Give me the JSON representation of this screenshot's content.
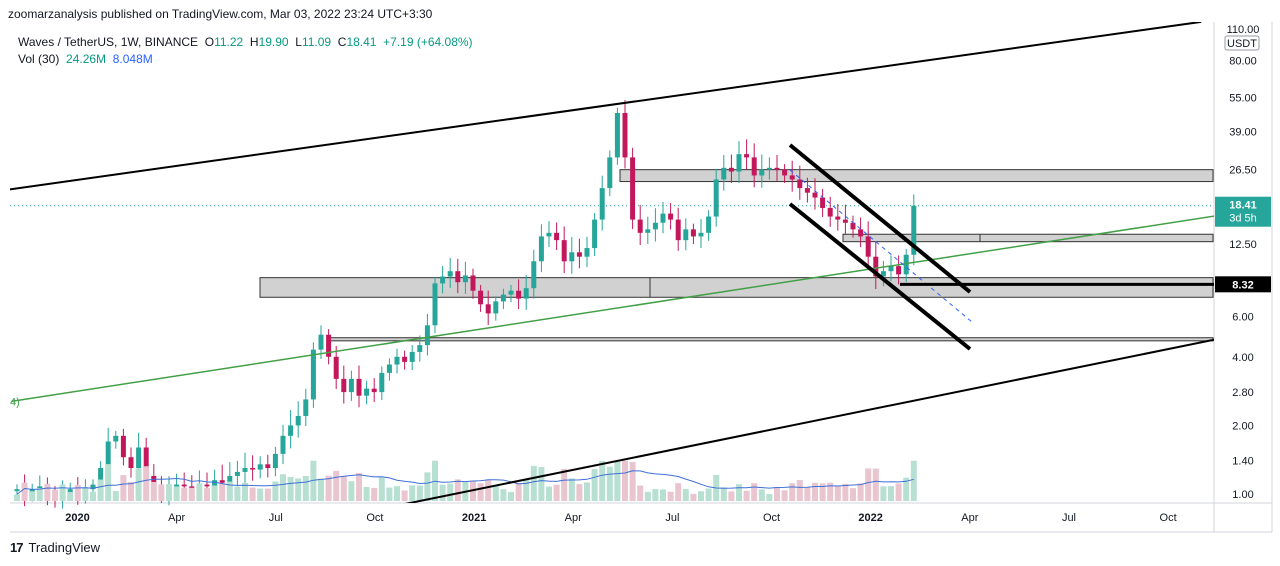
{
  "header": {
    "published": "zoomarzanalysis published on TradingView.com, Mar 03, 2022 23:24 UTC+3:30"
  },
  "legend": {
    "symbol": "Waves / TetherUS, 1W, BINANCE",
    "o_label": "O",
    "o": "11.22",
    "h_label": "H",
    "h": "19.90",
    "l_label": "L",
    "l": "11.09",
    "c_label": "C",
    "c": "18.41",
    "change": "+7.19 (+64.08%)",
    "vol_label": "Vol (30)",
    "vol1": "24.26M",
    "vol2": "8.048M"
  },
  "footer": {
    "brand": "TradingView",
    "logo": "17"
  },
  "colors": {
    "up": "#26a69a",
    "down": "#c2185b",
    "up_vol": "#b7e0d3",
    "down_vol": "#e9c5cf",
    "ma": "#3f6fd8",
    "trend_green": "#43a047",
    "line": "#000000",
    "zone": "#c9c9c9"
  },
  "chart_data": {
    "type": "candlestick",
    "y_scale": "log",
    "y_ticks": [
      "110.00",
      "80.00",
      "55.00",
      "39.00",
      "26.50",
      "18.41",
      "12.50",
      "8.32",
      "6.00",
      "4.00",
      "2.80",
      "2.00",
      "1.40",
      "1.00"
    ],
    "y_axis_unit": "USDT",
    "x_ticks": [
      "2020",
      "Apr",
      "Jul",
      "Oct",
      "2021",
      "Apr",
      "Jul",
      "Oct",
      "2022",
      "Apr",
      "Jul",
      "Oct"
    ],
    "x_ticks_bold": [
      "2020",
      "2021",
      "2022"
    ],
    "price_labels": [
      {
        "text": "18.41",
        "sub": "3d 5h",
        "value": 18.41,
        "color": "#26a69a"
      },
      {
        "text": "8.32",
        "value": 8.32,
        "color": "#000000"
      }
    ],
    "left_edge_label": "4)",
    "closes": [
      1.05,
      1.0,
      1.05,
      1.08,
      0.98,
      0.96,
      1.02,
      1.05,
      1.0,
      1.05,
      1.1,
      1.3,
      1.7,
      1.8,
      1.45,
      1.3,
      1.6,
      1.2,
      1.1,
      1.0,
      1.05,
      1.1,
      1.08,
      1.05,
      1.1,
      1.08,
      1.15,
      1.12,
      1.2,
      1.25,
      1.3,
      1.28,
      1.35,
      1.3,
      1.5,
      1.8,
      2.0,
      2.2,
      2.6,
      4.3,
      5.0,
      4.0,
      3.2,
      2.8,
      3.2,
      2.7,
      2.9,
      2.8,
      3.4,
      3.7,
      4.0,
      3.8,
      4.2,
      4.5,
      5.5,
      8.4,
      9.0,
      9.5,
      8.5,
      9.1,
      7.8,
      6.8,
      6.2,
      7.0,
      7.5,
      7.8,
      7.2,
      8.0,
      10.5,
      13.5,
      14.0,
      13.0,
      10.5,
      11.5,
      11.0,
      12.0,
      16.0,
      22.0,
      30.0,
      47.0,
      30.0,
      16.0,
      14.0,
      14.5,
      15.5,
      17.0,
      16.0,
      13.0,
      14.5,
      13.5,
      14.0,
      16.5,
      24.0,
      27.0,
      26.0,
      31.0,
      30.0,
      25.0,
      26.5,
      27.0,
      26.5,
      25.0,
      24.0,
      22.0,
      21.0,
      20.0,
      18.0,
      16.5,
      16.0,
      15.5,
      14.5,
      13.5,
      11.0,
      9.0,
      9.5,
      10.0,
      9.2,
      11.22,
      18.41
    ],
    "channel_upper": {
      "from": [
        "2018-06",
        9.8
      ],
      "to": [
        "2022-11",
        118
      ]
    },
    "channel_lower": {
      "from": [
        "2020-10",
        0.85
      ],
      "to": [
        "2023-01",
        5.3
      ]
    },
    "green_trend": {
      "from": [
        "2019-11",
        2.55
      ],
      "to": [
        "2023-01",
        18.0
      ]
    },
    "zones": [
      {
        "label": "zone-26.5",
        "from": 26.5,
        "to": 23.5
      },
      {
        "label": "zone-13",
        "from": 13.8,
        "to": 12.8
      },
      {
        "label": "zone-8",
        "from": 8.9,
        "to": 7.3
      },
      {
        "label": "zone-5",
        "from": 4.85,
        "to": 4.7
      }
    ]
  }
}
